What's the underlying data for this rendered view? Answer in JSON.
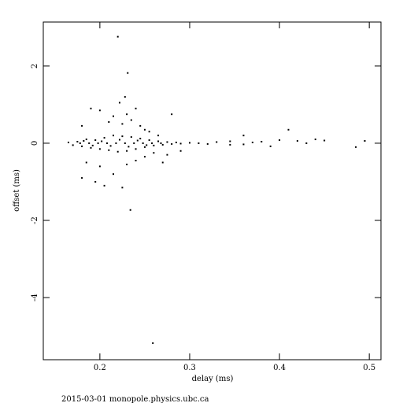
{
  "chart_data": {
    "type": "scatter",
    "x_label": "delay (ms)",
    "y_label": "offset (ms)",
    "footer": "2015-03-01 monopole.physics.ubc.ca",
    "xlim": [
      0.137,
      0.513
    ],
    "ylim": [
      -5.61,
      3.14
    ],
    "xticks": [
      0.2,
      0.3,
      0.4,
      0.5
    ],
    "yticks": [
      -4,
      -2,
      0,
      2
    ],
    "color": "#000000",
    "x": [
      0.165,
      0.17,
      0.175,
      0.18,
      0.185,
      0.19,
      0.195,
      0.2,
      0.205,
      0.21,
      0.215,
      0.22,
      0.225,
      0.23,
      0.235,
      0.24,
      0.245,
      0.25,
      0.255,
      0.26,
      0.265,
      0.27,
      0.275,
      0.28,
      0.285,
      0.29,
      0.3,
      0.31,
      0.32,
      0.178,
      0.188,
      0.198,
      0.208,
      0.218,
      0.228,
      0.238,
      0.248,
      0.258,
      0.268,
      0.182,
      0.192,
      0.202,
      0.212,
      0.222,
      0.232,
      0.242,
      0.252,
      0.18,
      0.19,
      0.2,
      0.21,
      0.215,
      0.225,
      0.23,
      0.235,
      0.245,
      0.25,
      0.255,
      0.265,
      0.28,
      0.24,
      0.228,
      0.222,
      0.18,
      0.185,
      0.195,
      0.2,
      0.205,
      0.215,
      0.225,
      0.23,
      0.24,
      0.25,
      0.26,
      0.27,
      0.275,
      0.29,
      0.22,
      0.231,
      0.234,
      0.259,
      0.33,
      0.345,
      0.36,
      0.37,
      0.38,
      0.39,
      0.4,
      0.41,
      0.42,
      0.43,
      0.44,
      0.45,
      0.485,
      0.495,
      0.36,
      0.345
    ],
    "values": [
      0.02,
      -0.05,
      0.04,
      -0.08,
      0.1,
      -0.12,
      0.08,
      -0.15,
      0.14,
      -0.18,
      0.2,
      -0.22,
      0.18,
      -0.2,
      0.16,
      -0.15,
      0.12,
      -0.1,
      0.08,
      -0.06,
      0.05,
      -0.04,
      0.03,
      -0.02,
      0.02,
      -0.01,
      0.01,
      0,
      -0.02,
      0,
      0,
      0,
      0,
      0,
      0,
      0,
      0,
      0,
      0,
      0.06,
      -0.06,
      0.05,
      -0.07,
      0.09,
      -0.09,
      0.07,
      -0.05,
      0.45,
      0.9,
      0.85,
      0.55,
      0.7,
      0.5,
      0.75,
      0.6,
      0.45,
      0.35,
      0.3,
      0.2,
      0.75,
      0.9,
      1.2,
      1.05,
      -0.9,
      -0.5,
      -1.0,
      -0.6,
      -1.1,
      -0.8,
      -1.15,
      -0.55,
      -0.45,
      -0.35,
      -0.25,
      -0.5,
      -0.3,
      -0.2,
      2.76,
      1.82,
      -1.73,
      -5.18,
      0.03,
      0.05,
      -0.03,
      0.02,
      0.04,
      -0.08,
      0.08,
      0.35,
      0.06,
      0,
      0.1,
      0.07,
      -0.1,
      0.06,
      0.2,
      -0.04
    ]
  }
}
